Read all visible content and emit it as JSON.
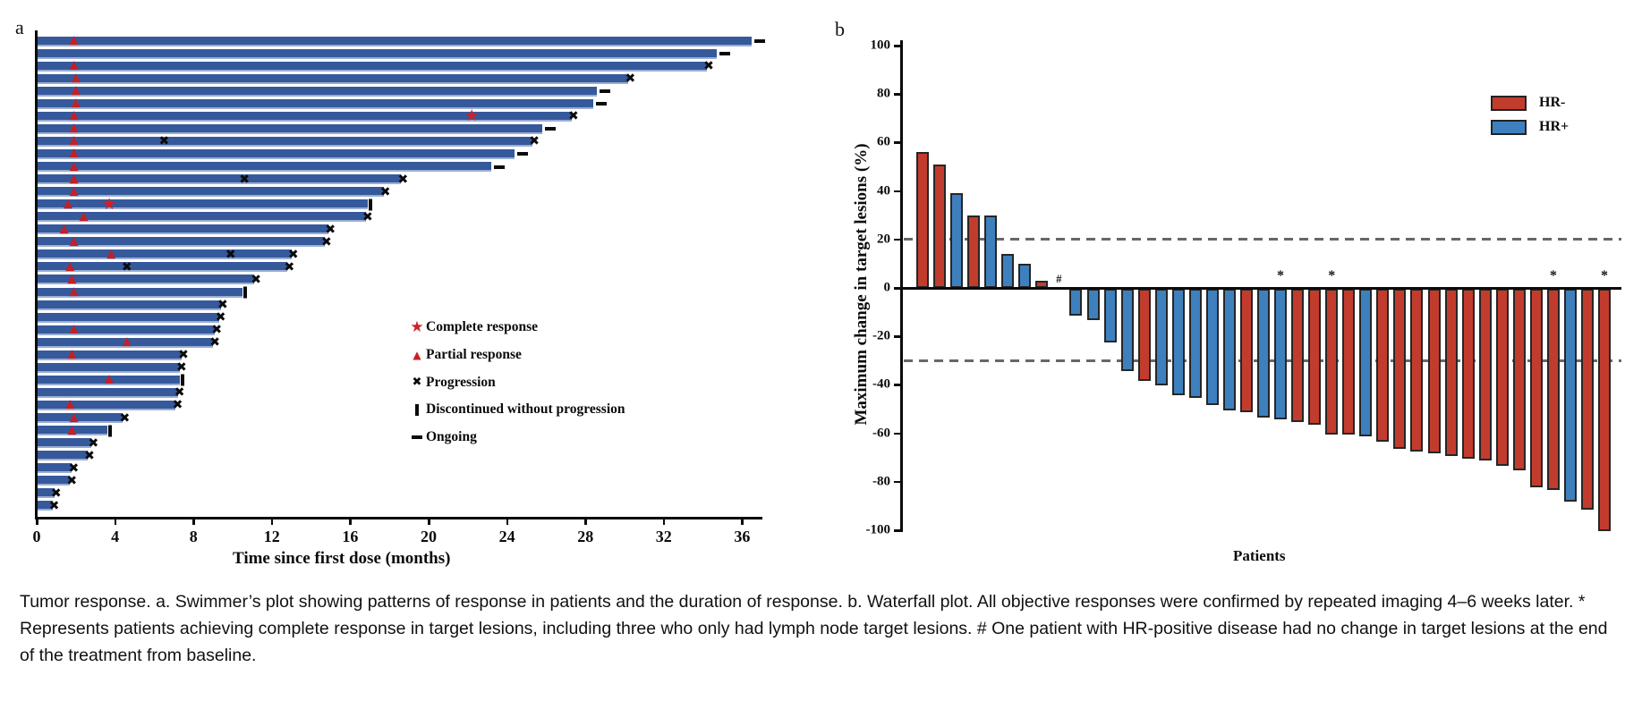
{
  "figure_caption": "Tumor response. a. Swimmer’s plot showing patterns of response in patients and the duration of response. b. Waterfall plot. All objective responses were confirmed by repeated imaging 4–6 weeks later. * Represents patients achieving complete response in target lesions, including three who only had lymph node target lesions. # One patient with HR-positive disease had no change in target lesions at the end of the treatment from baseline.",
  "panel_a": {
    "label": "a",
    "xlabel": "Time since first dose (months)",
    "x_ticks": [
      "0",
      "4",
      "8",
      "12",
      "16",
      "20",
      "24",
      "28",
      "32",
      "36"
    ],
    "legend": [
      {
        "glyph": "star-icon",
        "label": "Complete response"
      },
      {
        "glyph": "triangle-icon",
        "label": "Partial response"
      },
      {
        "glyph": "x-icon",
        "label": "Progression"
      },
      {
        "glyph": "discontinued-icon",
        "label": "Discontinued without progression"
      },
      {
        "glyph": "ongoing-icon",
        "label": "Ongoing"
      }
    ],
    "colors": {
      "bar_blue": "#35599B",
      "bar_edge": "#9AAED2",
      "response_red": "#C32026",
      "marker_black": "#0b0b0b"
    }
  },
  "panel_b": {
    "label": "b",
    "ylabel": "Maximum change in target lesions (%)",
    "xlabel": "Patients",
    "y_ticks": [
      "100",
      "80",
      "60",
      "40",
      "20",
      "0",
      "-20",
      "-40",
      "-60",
      "-80",
      "-100"
    ],
    "legend": [
      {
        "label": "HR-",
        "color": "#C23C2D"
      },
      {
        "label": "HR+",
        "color": "#3E80BE"
      }
    ],
    "reference_lines": [
      20,
      -30
    ],
    "colors": {
      "hr_neg": "#C23C2D",
      "hr_pos": "#3E80BE",
      "bar_border": "#262626",
      "dash_gray": "#676767"
    }
  },
  "chart_data": [
    {
      "type": "bar",
      "subtype": "swimmer",
      "xlabel": "Time since first dose (months)",
      "xlim": [
        0,
        37
      ],
      "x_ticks": [
        0,
        4,
        8,
        12,
        16,
        20,
        24,
        28,
        32,
        36
      ],
      "legend": [
        "Complete response",
        "Partial response",
        "Progression",
        "Discontinued without progression",
        "Ongoing"
      ],
      "patients": [
        {
          "duration": 36.5,
          "end": "ongoing",
          "pr": 1.9,
          "cr": null,
          "mid_x": []
        },
        {
          "duration": 34.7,
          "end": "ongoing",
          "pr": null,
          "cr": null,
          "mid_x": []
        },
        {
          "duration": 34.2,
          "end": "x",
          "pr": 1.9,
          "cr": null,
          "mid_x": []
        },
        {
          "duration": 30.2,
          "end": "x",
          "pr": 2.0,
          "cr": null,
          "mid_x": []
        },
        {
          "duration": 28.6,
          "end": "ongoing",
          "pr": 2.0,
          "cr": null,
          "mid_x": []
        },
        {
          "duration": 28.4,
          "end": "ongoing",
          "pr": 2.0,
          "cr": null,
          "mid_x": []
        },
        {
          "duration": 27.3,
          "end": "x",
          "pr": 1.9,
          "cr": 22.2,
          "mid_x": []
        },
        {
          "duration": 25.8,
          "end": "ongoing",
          "pr": 1.9,
          "cr": null,
          "mid_x": []
        },
        {
          "duration": 25.3,
          "end": "x",
          "pr": 1.9,
          "cr": null,
          "mid_x": [
            6.5
          ]
        },
        {
          "duration": 24.4,
          "end": "ongoing",
          "pr": 1.9,
          "cr": null,
          "mid_x": []
        },
        {
          "duration": 23.2,
          "end": "ongoing",
          "pr": 1.9,
          "cr": null,
          "mid_x": []
        },
        {
          "duration": 18.6,
          "end": "x",
          "pr": 1.9,
          "cr": null,
          "mid_x": [
            10.6
          ]
        },
        {
          "duration": 17.7,
          "end": "x",
          "pr": 1.9,
          "cr": null,
          "mid_x": []
        },
        {
          "duration": 16.9,
          "end": "discontinued",
          "pr": 1.6,
          "cr": 3.7,
          "mid_x": []
        },
        {
          "duration": 16.8,
          "end": "x",
          "pr": 2.4,
          "cr": null,
          "mid_x": []
        },
        {
          "duration": 14.9,
          "end": "x",
          "pr": 1.4,
          "cr": null,
          "mid_x": []
        },
        {
          "duration": 14.7,
          "end": "x",
          "pr": 1.9,
          "cr": null,
          "mid_x": []
        },
        {
          "duration": 13.0,
          "end": "x",
          "pr": 3.8,
          "cr": null,
          "mid_x": [
            9.9
          ]
        },
        {
          "duration": 12.8,
          "end": "x",
          "pr": 1.7,
          "cr": null,
          "mid_x": [
            4.6
          ]
        },
        {
          "duration": 11.1,
          "end": "x",
          "pr": 1.8,
          "cr": null,
          "mid_x": []
        },
        {
          "duration": 10.5,
          "end": "discontinued",
          "pr": 1.9,
          "cr": null,
          "mid_x": []
        },
        {
          "duration": 9.4,
          "end": "x",
          "pr": null,
          "cr": null,
          "mid_x": []
        },
        {
          "duration": 9.3,
          "end": "x",
          "pr": null,
          "cr": null,
          "mid_x": []
        },
        {
          "duration": 9.1,
          "end": "x",
          "pr": 1.9,
          "cr": null,
          "mid_x": []
        },
        {
          "duration": 9.0,
          "end": "x",
          "pr": 4.6,
          "cr": null,
          "mid_x": []
        },
        {
          "duration": 7.4,
          "end": "x",
          "pr": 1.8,
          "cr": null,
          "mid_x": []
        },
        {
          "duration": 7.3,
          "end": "x",
          "pr": null,
          "cr": null,
          "mid_x": []
        },
        {
          "duration": 7.3,
          "end": "discontinued",
          "pr": 3.7,
          "cr": null,
          "mid_x": []
        },
        {
          "duration": 7.2,
          "end": "x",
          "pr": null,
          "cr": null,
          "mid_x": []
        },
        {
          "duration": 7.1,
          "end": "x",
          "pr": 1.7,
          "cr": null,
          "mid_x": []
        },
        {
          "duration": 4.4,
          "end": "x",
          "pr": 1.9,
          "cr": null,
          "mid_x": []
        },
        {
          "duration": 3.6,
          "end": "discontinued",
          "pr": 1.8,
          "cr": null,
          "mid_x": []
        },
        {
          "duration": 2.8,
          "end": "x",
          "pr": null,
          "cr": null,
          "mid_x": []
        },
        {
          "duration": 2.6,
          "end": "x",
          "pr": null,
          "cr": null,
          "mid_x": []
        },
        {
          "duration": 1.8,
          "end": "x",
          "pr": null,
          "cr": null,
          "mid_x": []
        },
        {
          "duration": 1.7,
          "end": "x",
          "pr": null,
          "cr": null,
          "mid_x": []
        },
        {
          "duration": 0.9,
          "end": "x",
          "pr": null,
          "cr": null,
          "mid_x": []
        },
        {
          "duration": 0.8,
          "end": "x",
          "pr": null,
          "cr": null,
          "mid_x": []
        }
      ]
    },
    {
      "type": "bar",
      "subtype": "waterfall",
      "ylabel": "Maximum change in target lesions (%)",
      "xlabel": "Patients",
      "ylim": [
        -100,
        100
      ],
      "y_ticks": [
        100,
        80,
        60,
        40,
        20,
        0,
        -20,
        -40,
        -60,
        -80,
        -100
      ],
      "reference_lines": [
        20,
        -30
      ],
      "legend": [
        {
          "name": "HR-",
          "color": "#C23C2D"
        },
        {
          "name": "HR+",
          "color": "#3E80BE"
        }
      ],
      "patients": [
        {
          "value": 56,
          "group": "HR-",
          "annotation": null
        },
        {
          "value": 51,
          "group": "HR-",
          "annotation": null
        },
        {
          "value": 39,
          "group": "HR+",
          "annotation": null
        },
        {
          "value": 30,
          "group": "HR-",
          "annotation": null
        },
        {
          "value": 30,
          "group": "HR+",
          "annotation": null
        },
        {
          "value": 14,
          "group": "HR+",
          "annotation": null
        },
        {
          "value": 10,
          "group": "HR+",
          "annotation": null
        },
        {
          "value": 3,
          "group": "HR-",
          "annotation": null
        },
        {
          "value": 0,
          "group": "HR+",
          "annotation": "#"
        },
        {
          "value": -11,
          "group": "HR+",
          "annotation": null
        },
        {
          "value": -13,
          "group": "HR+",
          "annotation": null
        },
        {
          "value": -22,
          "group": "HR+",
          "annotation": null
        },
        {
          "value": -34,
          "group": "HR+",
          "annotation": null
        },
        {
          "value": -38,
          "group": "HR-",
          "annotation": null
        },
        {
          "value": -40,
          "group": "HR+",
          "annotation": null
        },
        {
          "value": -44,
          "group": "HR+",
          "annotation": null
        },
        {
          "value": -45,
          "group": "HR+",
          "annotation": null
        },
        {
          "value": -48,
          "group": "HR+",
          "annotation": null
        },
        {
          "value": -50,
          "group": "HR+",
          "annotation": null
        },
        {
          "value": -51,
          "group": "HR-",
          "annotation": null
        },
        {
          "value": -53,
          "group": "HR+",
          "annotation": null
        },
        {
          "value": -54,
          "group": "HR+",
          "annotation": "*"
        },
        {
          "value": -55,
          "group": "HR-",
          "annotation": null
        },
        {
          "value": -56,
          "group": "HR-",
          "annotation": null
        },
        {
          "value": -60,
          "group": "HR-",
          "annotation": "*"
        },
        {
          "value": -60,
          "group": "HR-",
          "annotation": null
        },
        {
          "value": -61,
          "group": "HR+",
          "annotation": null
        },
        {
          "value": -63,
          "group": "HR-",
          "annotation": null
        },
        {
          "value": -66,
          "group": "HR-",
          "annotation": null
        },
        {
          "value": -67,
          "group": "HR-",
          "annotation": null
        },
        {
          "value": -68,
          "group": "HR-",
          "annotation": null
        },
        {
          "value": -69,
          "group": "HR-",
          "annotation": null
        },
        {
          "value": -70,
          "group": "HR-",
          "annotation": null
        },
        {
          "value": -71,
          "group": "HR-",
          "annotation": null
        },
        {
          "value": -73,
          "group": "HR-",
          "annotation": null
        },
        {
          "value": -75,
          "group": "HR-",
          "annotation": null
        },
        {
          "value": -82,
          "group": "HR-",
          "annotation": null
        },
        {
          "value": -83,
          "group": "HR-",
          "annotation": "*"
        },
        {
          "value": -88,
          "group": "HR+",
          "annotation": null
        },
        {
          "value": -91,
          "group": "HR-",
          "annotation": null
        },
        {
          "value": -100,
          "group": "HR-",
          "annotation": "*"
        }
      ]
    }
  ]
}
